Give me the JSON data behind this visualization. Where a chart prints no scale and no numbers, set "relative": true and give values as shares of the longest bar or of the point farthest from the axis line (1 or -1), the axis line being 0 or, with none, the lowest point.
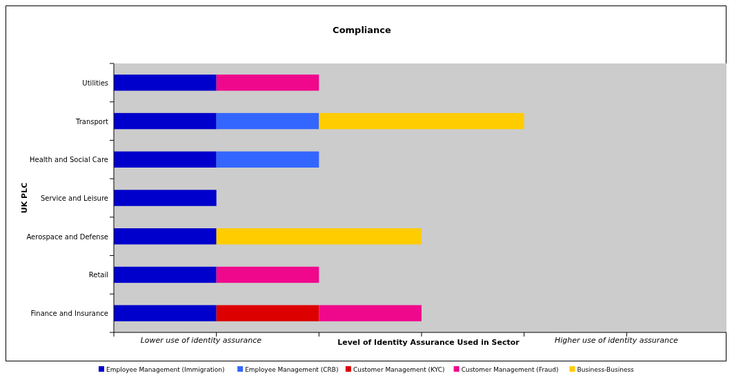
{
  "chart_data": {
    "type": "bar",
    "orientation": "horizontal",
    "stacked": true,
    "relative": true,
    "title": "Compliance",
    "xlabel": "Level of Identity Assurance Used in Sector",
    "ylabel": "UK PLC",
    "annotations": [
      "Lower use of identity assurance",
      "Higher use of identity assurance"
    ],
    "categories": [
      "Utilities",
      "Transport",
      "Health and Social Care",
      "Service and Leisure",
      "Aerospace and Defense",
      "Retail",
      "Finance and Insurance"
    ],
    "series": [
      {
        "name": "Employee Management (Immigration)",
        "color": "#0000cc",
        "values": [
          0.25,
          0.25,
          0.25,
          0.25,
          0.25,
          0.25,
          0.25
        ]
      },
      {
        "name": "Employee Management (CRB)",
        "color": "#3366ff",
        "values": [
          0,
          0.25,
          0.25,
          0,
          0,
          0,
          0
        ]
      },
      {
        "name": "Customer Management (KYC)",
        "color": "#dd0000",
        "values": [
          0,
          0,
          0,
          0,
          0,
          0,
          0.25
        ]
      },
      {
        "name": "Customer Management (Fraud)",
        "color": "#f0088c",
        "values": [
          0.25,
          0,
          0,
          0,
          0,
          0.25,
          0.25
        ]
      },
      {
        "name": "Business-Business",
        "color": "#ffcc00",
        "values": [
          0,
          0.5,
          0,
          0,
          0.5,
          0,
          0
        ]
      }
    ],
    "legend": "bottom",
    "grid": false
  }
}
